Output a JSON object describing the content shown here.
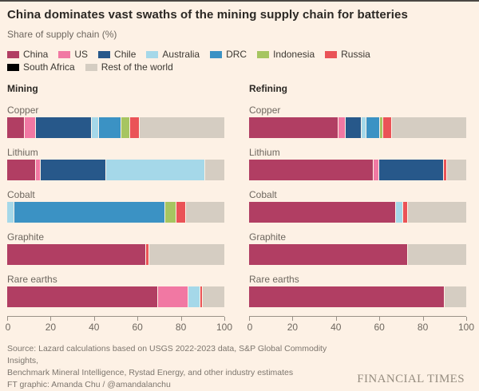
{
  "page": {
    "title": "China dominates vast swaths of the mining supply chain for batteries",
    "subtitle": "Share of supply chain (%)"
  },
  "legend": {
    "items": [
      {
        "label": "China",
        "color": "#b13e63"
      },
      {
        "label": "US",
        "color": "#f178a3"
      },
      {
        "label": "Chile",
        "color": "#27588a"
      },
      {
        "label": "Australia",
        "color": "#a5d8e9"
      },
      {
        "label": "DRC",
        "color": "#3b92c4"
      },
      {
        "label": "Indonesia",
        "color": "#a6c561"
      },
      {
        "label": "Russia",
        "color": "#ea5357"
      },
      {
        "label": "South Africa",
        "color": "#000000"
      },
      {
        "label": "Rest of the world",
        "color": "#d5cdc2"
      }
    ]
  },
  "chart_data": {
    "type": "bar",
    "subtype": "horizontal-stacked",
    "unit": "%",
    "xlim": [
      0,
      100
    ],
    "xticks": [
      0,
      20,
      40,
      60,
      80,
      100
    ],
    "grid": false,
    "legend_position": "top",
    "categories": [
      "Copper",
      "Lithium",
      "Cobalt",
      "Graphite",
      "Rare earths"
    ],
    "panels": [
      {
        "title": "Mining",
        "rows": [
          {
            "category": "Copper",
            "segments": [
              {
                "name": "China",
                "value": 8
              },
              {
                "name": "US",
                "value": 5
              },
              {
                "name": "Chile",
                "value": 26
              },
              {
                "name": "Australia",
                "value": 3
              },
              {
                "name": "DRC",
                "value": 10
              },
              {
                "name": "Indonesia",
                "value": 4
              },
              {
                "name": "Russia",
                "value": 4
              },
              {
                "name": "Rest of the world",
                "value": 40
              }
            ]
          },
          {
            "category": "Lithium",
            "segments": [
              {
                "name": "China",
                "value": 13
              },
              {
                "name": "US",
                "value": 2
              },
              {
                "name": "Chile",
                "value": 30
              },
              {
                "name": "Australia",
                "value": 46
              },
              {
                "name": "Rest of the world",
                "value": 9
              }
            ]
          },
          {
            "category": "Cobalt",
            "segments": [
              {
                "name": "Australia",
                "value": 3
              },
              {
                "name": "DRC",
                "value": 70
              },
              {
                "name": "Indonesia",
                "value": 5
              },
              {
                "name": "Russia",
                "value": 4
              },
              {
                "name": "Rest of the world",
                "value": 18
              }
            ]
          },
          {
            "category": "Graphite",
            "segments": [
              {
                "name": "China",
                "value": 64
              },
              {
                "name": "Russia",
                "value": 1
              },
              {
                "name": "Rest of the world",
                "value": 35
              }
            ]
          },
          {
            "category": "Rare earths",
            "segments": [
              {
                "name": "China",
                "value": 70
              },
              {
                "name": "US",
                "value": 14
              },
              {
                "name": "Australia",
                "value": 5
              },
              {
                "name": "Russia",
                "value": 1
              },
              {
                "name": "Rest of the world",
                "value": 10
              }
            ]
          }
        ]
      },
      {
        "title": "Refining",
        "rows": [
          {
            "category": "Copper",
            "segments": [
              {
                "name": "China",
                "value": 42
              },
              {
                "name": "US",
                "value": 3
              },
              {
                "name": "Chile",
                "value": 7
              },
              {
                "name": "Australia",
                "value": 2
              },
              {
                "name": "DRC",
                "value": 6
              },
              {
                "name": "Indonesia",
                "value": 1
              },
              {
                "name": "Russia",
                "value": 4
              },
              {
                "name": "Rest of the world",
                "value": 35
              }
            ]
          },
          {
            "category": "Lithium",
            "segments": [
              {
                "name": "China",
                "value": 58
              },
              {
                "name": "US",
                "value": 2
              },
              {
                "name": "Chile",
                "value": 30
              },
              {
                "name": "Russia",
                "value": 1
              },
              {
                "name": "Rest of the world",
                "value": 9
              }
            ]
          },
          {
            "category": "Cobalt",
            "segments": [
              {
                "name": "China",
                "value": 68
              },
              {
                "name": "Australia",
                "value": 3
              },
              {
                "name": "Russia",
                "value": 2
              },
              {
                "name": "Rest of the world",
                "value": 27
              }
            ]
          },
          {
            "category": "Graphite",
            "segments": [
              {
                "name": "China",
                "value": 73
              },
              {
                "name": "Rest of the world",
                "value": 27
              }
            ]
          },
          {
            "category": "Rare earths",
            "segments": [
              {
                "name": "China",
                "value": 90
              },
              {
                "name": "Rest of the world",
                "value": 10
              }
            ]
          }
        ]
      }
    ]
  },
  "footer": {
    "source_line1": "Source: Lazard calculations based on USGS 2022-2023 data, S&P Global Commodity Insights,",
    "source_line2": "Benchmark Mineral Intelligence, Rystad Energy, and other industry estimates",
    "credit": "FT graphic: Amanda Chu / @amandalanchu",
    "logo": "FINANCIAL TIMES"
  }
}
